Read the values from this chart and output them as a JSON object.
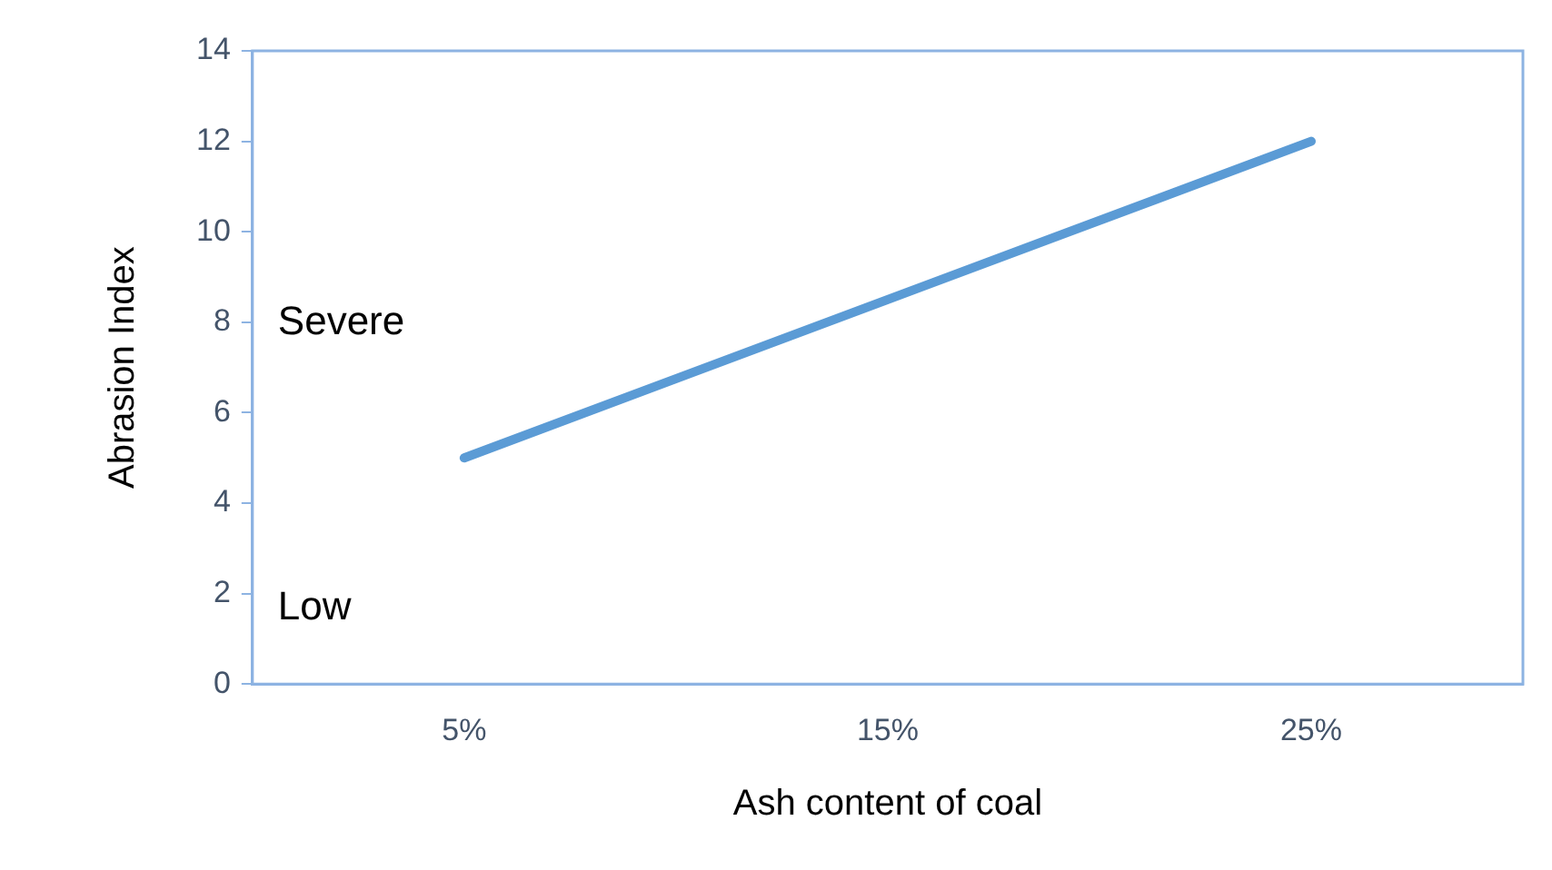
{
  "chart_data": {
    "type": "line",
    "xlabel": "Ash content of coal",
    "ylabel": "Abrasion Index",
    "categories": [
      "5%",
      "15%",
      "25%"
    ],
    "series": [
      {
        "color": "#5b9bd5",
        "values": [
          5,
          8.5,
          12
        ]
      }
    ],
    "ylim": [
      0,
      14
    ],
    "yticks": [
      0,
      2,
      4,
      6,
      8,
      10,
      12,
      14
    ],
    "grid": false,
    "legend": false,
    "marker": "none",
    "line_style": "solid",
    "annotations": [
      "Severe",
      "Low"
    ]
  }
}
